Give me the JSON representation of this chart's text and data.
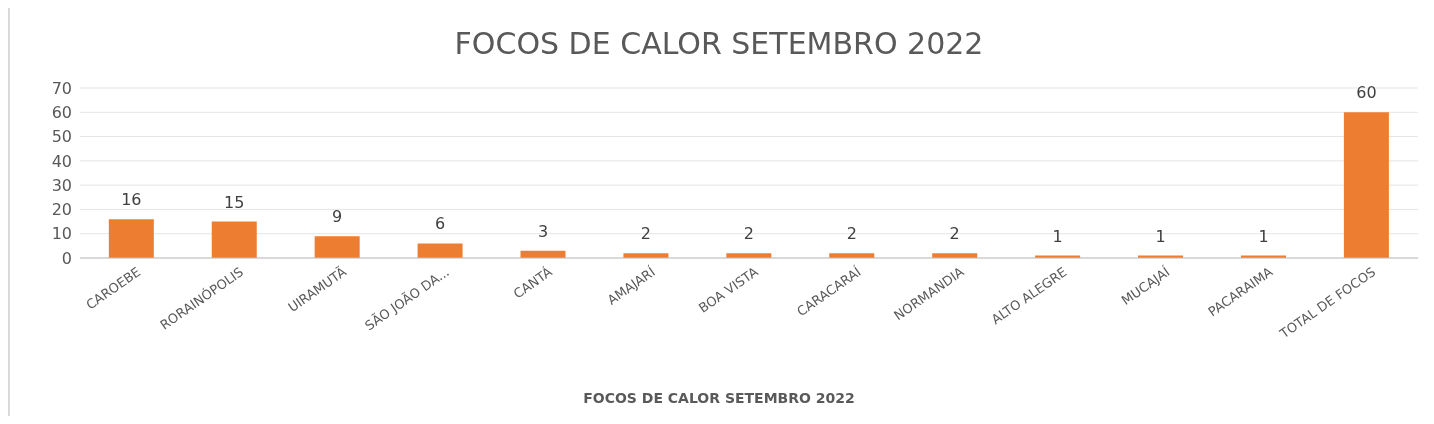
{
  "chart_data": {
    "type": "bar",
    "title": "FOCOS DE CALOR SETEMBRO 2022",
    "xlabel": "FOCOS DE CALOR SETEMBRO 2022",
    "categories": [
      "CAROEBE",
      "RORAINÓPOLIS",
      "UIRAMUTÃ",
      "SÃO JOÃO DA...",
      "CANTÁ",
      "AMAJARÍ",
      "BOA VISTA",
      "CARACARAÍ",
      "NORMANDIA",
      "ALTO ALEGRE",
      "MUCAJAÍ",
      "PACARAIMA",
      "TOTAL DE FOCOS"
    ],
    "values": [
      16,
      15,
      9,
      6,
      3,
      2,
      2,
      2,
      2,
      1,
      1,
      1,
      60
    ],
    "color": "#ed7d31",
    "ylim": [
      0,
      70
    ],
    "yticks": [
      0,
      10,
      20,
      30,
      40,
      50,
      60,
      70
    ],
    "grid": "y",
    "data_labels": true
  }
}
